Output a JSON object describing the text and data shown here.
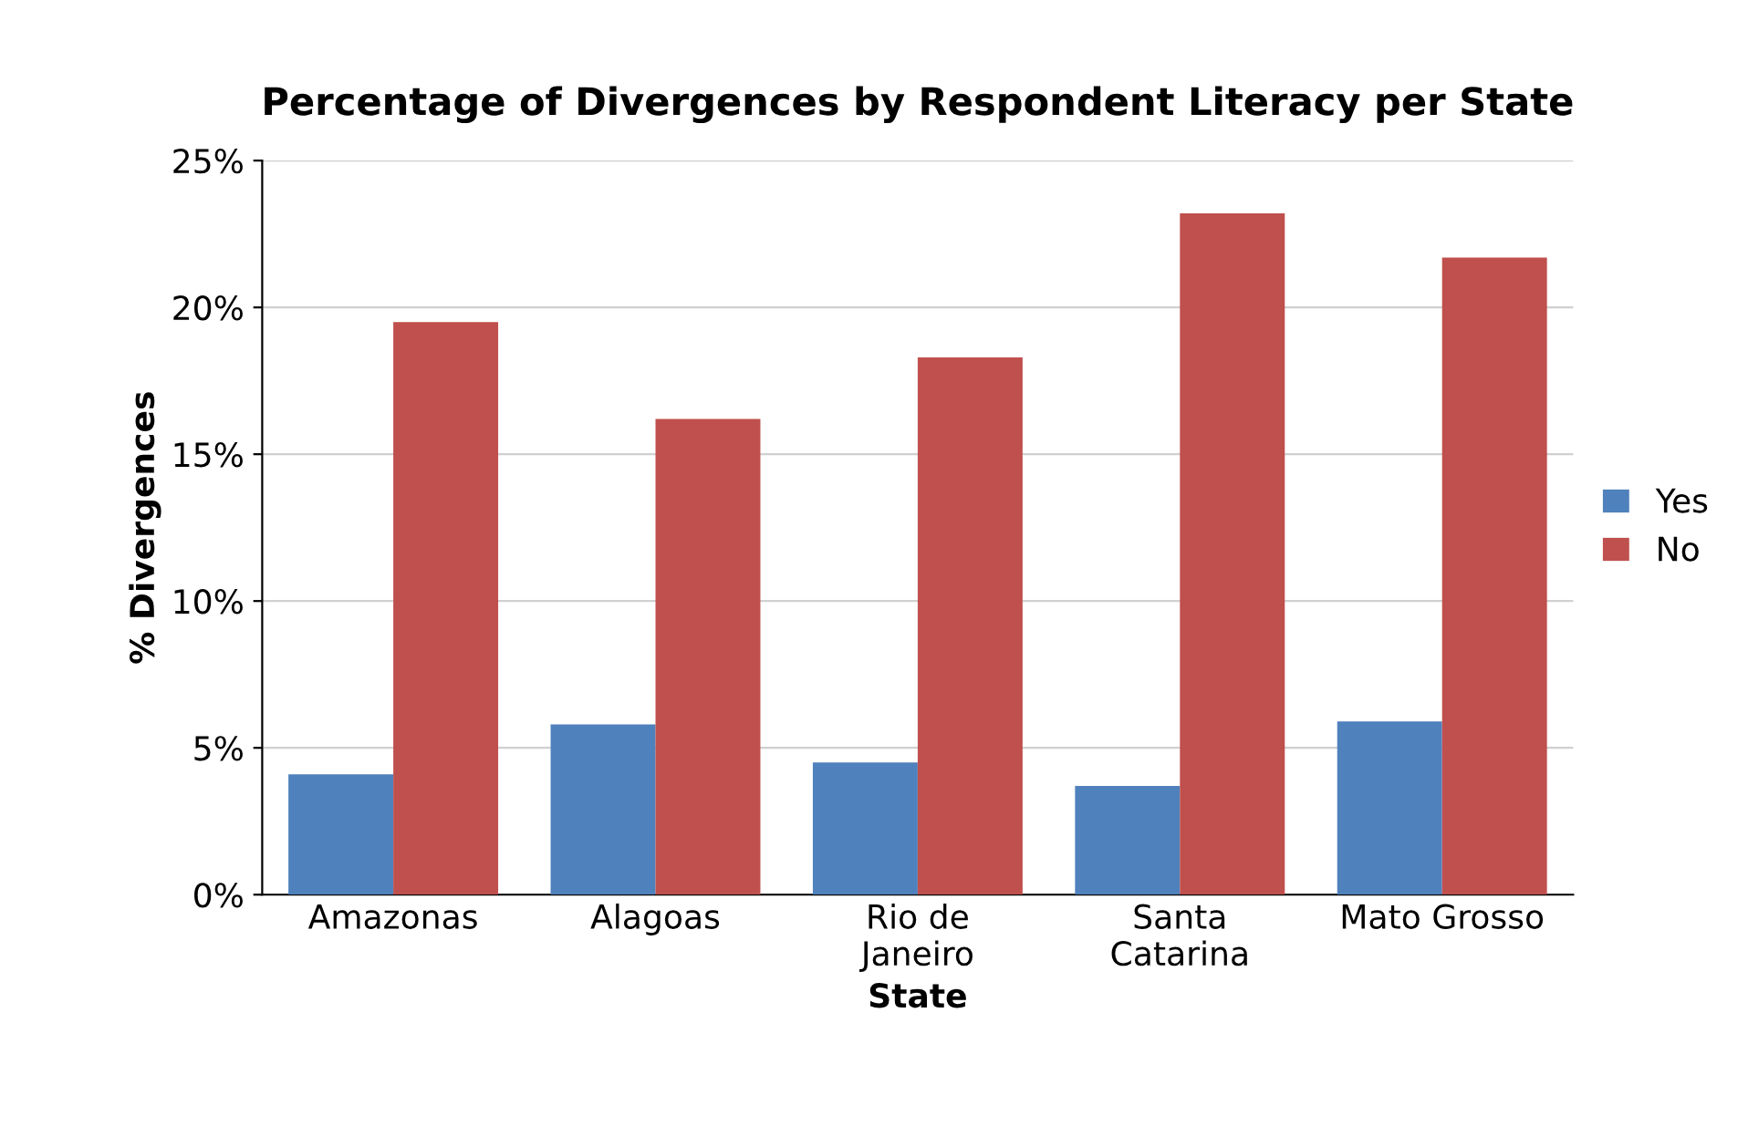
{
  "chart_data": {
    "type": "bar",
    "title": "Percentage of Divergences by Respondent Literacy per State",
    "xlabel": "State",
    "ylabel": "% Divergences",
    "categories": [
      "Amazonas",
      "Alagoas",
      "Rio de\nJaneiro",
      "Santa\nCatarina",
      "Mato Grosso"
    ],
    "series": [
      {
        "name": "Yes",
        "color": "#4f81bd",
        "values": [
          4.1,
          5.8,
          4.5,
          3.7,
          5.9
        ]
      },
      {
        "name": "No",
        "color": "#c0504d",
        "values": [
          19.5,
          16.2,
          18.3,
          23.2,
          21.7
        ]
      }
    ],
    "ylim": [
      0,
      25
    ],
    "yticks": [
      {
        "value": 0,
        "label": "0%"
      },
      {
        "value": 5,
        "label": "5%"
      },
      {
        "value": 10,
        "label": "10%"
      },
      {
        "value": 15,
        "label": "15%"
      },
      {
        "value": 20,
        "label": "20%"
      },
      {
        "value": 25,
        "label": "25%"
      }
    ],
    "grid": "y",
    "legend": "right"
  }
}
